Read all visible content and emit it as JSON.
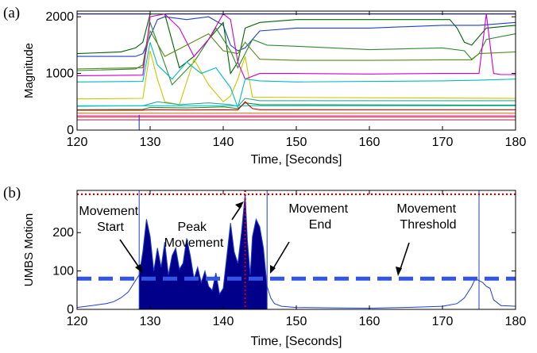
{
  "chart_data": [
    {
      "panel_label": "(a)",
      "type": "line",
      "xlabel": "Time, [Seconds]",
      "ylabel": "Magnitude",
      "xlim": [
        120,
        180
      ],
      "ylim": [
        0,
        2100
      ],
      "xticks": [
        120,
        130,
        140,
        150,
        160,
        170,
        180
      ],
      "yticks": [
        0,
        1000,
        2000
      ],
      "grid": false,
      "series": [
        {
          "color": "#000080",
          "x": [
            120,
            180
          ],
          "y": [
            2050,
            2050
          ]
        },
        {
          "color": "#1f3fcf",
          "x": [
            120,
            128,
            129,
            131,
            132,
            135,
            138,
            140,
            141,
            142,
            143,
            145,
            150,
            160,
            170,
            175,
            180
          ],
          "y": [
            1300,
            1300,
            1350,
            1950,
            2000,
            1950,
            2000,
            1850,
            1500,
            1400,
            1450,
            1750,
            1800,
            1800,
            1850,
            1850,
            1900
          ]
        },
        {
          "color": "#006400",
          "x": [
            120,
            126,
            128,
            129,
            130,
            132,
            134,
            136,
            138,
            140,
            141,
            142,
            143,
            145,
            150,
            160,
            170,
            171,
            172,
            173,
            174,
            175,
            176,
            180
          ],
          "y": [
            1350,
            1380,
            1450,
            1550,
            2050,
            2050,
            1100,
            1300,
            1600,
            1900,
            1000,
            1200,
            1800,
            1900,
            1950,
            1950,
            1950,
            1950,
            1800,
            1550,
            1500,
            1650,
            1800,
            1850
          ]
        },
        {
          "color": "#2e8b2e",
          "x": [
            120,
            128,
            129,
            130,
            133,
            136,
            139,
            141,
            142,
            144,
            146,
            150,
            160,
            170,
            173,
            174,
            175,
            176,
            180
          ],
          "y": [
            1050,
            1080,
            1150,
            1900,
            800,
            1200,
            1800,
            1400,
            1100,
            1600,
            1500,
            1480,
            1420,
            1450,
            1400,
            1250,
            1350,
            1600,
            1700
          ]
        },
        {
          "color": "#5a8a1a",
          "x": [
            120,
            129,
            130,
            132,
            135,
            138,
            140,
            142,
            143,
            145,
            150,
            160,
            170,
            174,
            175,
            180
          ],
          "y": [
            1080,
            1100,
            1750,
            1300,
            1500,
            1700,
            1400,
            1350,
            1550,
            1250,
            1230,
            1230,
            1240,
            1240,
            1350,
            1380
          ]
        },
        {
          "color": "#c8c800",
          "x": [
            120,
            129,
            130,
            131,
            132,
            134,
            136,
            138,
            140,
            141,
            142,
            143,
            144,
            180
          ],
          "y": [
            550,
            560,
            1400,
            900,
            500,
            450,
            1250,
            800,
            500,
            600,
            900,
            1300,
            580,
            560
          ]
        },
        {
          "color": "#cc00cc",
          "x": [
            120,
            129,
            130,
            132,
            134,
            136,
            138,
            140,
            141,
            142,
            143,
            145,
            150,
            160,
            170,
            175,
            176,
            177,
            178,
            179,
            180
          ],
          "y": [
            960,
            970,
            2000,
            2050,
            1800,
            1300,
            1600,
            2050,
            1950,
            1200,
            900,
            1000,
            1000,
            990,
            1000,
            1000,
            2050,
            1000,
            980,
            980,
            980
          ]
        },
        {
          "color": "#00bcbc",
          "x": [
            120,
            129,
            130,
            131,
            133,
            135,
            137,
            139,
            141,
            142,
            143,
            145,
            150,
            160,
            170,
            175,
            180
          ],
          "y": [
            850,
            860,
            1550,
            1150,
            900,
            1200,
            1000,
            1100,
            750,
            400,
            900,
            870,
            850,
            860,
            870,
            880,
            900
          ]
        },
        {
          "color": "#3aa0a0",
          "x": [
            120,
            129,
            131,
            134,
            138,
            141,
            142,
            143,
            145,
            180
          ],
          "y": [
            420,
            430,
            500,
            450,
            480,
            450,
            420,
            560,
            520,
            520
          ]
        },
        {
          "color": "#228b22",
          "x": [
            120,
            129,
            130,
            135,
            140,
            142,
            143,
            145,
            180
          ],
          "y": [
            360,
            365,
            400,
            390,
            410,
            380,
            480,
            450,
            440
          ]
        },
        {
          "color": "#00cccc",
          "x": [
            120,
            180
          ],
          "y": [
            430,
            430
          ]
        },
        {
          "color": "#d00000",
          "x": [
            120,
            129,
            130,
            135,
            140,
            142,
            143,
            144,
            145,
            180
          ],
          "y": [
            350,
            350,
            360,
            355,
            360,
            355,
            500,
            380,
            360,
            360
          ]
        },
        {
          "color": "#ff7f00",
          "x": [
            120,
            180
          ],
          "y": [
            300,
            300
          ]
        },
        {
          "color": "#ff00ff",
          "x": [
            120,
            180
          ],
          "y": [
            250,
            250
          ]
        },
        {
          "color": "#cc6600",
          "x": [
            120,
            180
          ],
          "y": [
            230,
            230
          ]
        },
        {
          "color": "#b03060",
          "x": [
            120,
            180
          ],
          "y": [
            180,
            180
          ]
        },
        {
          "color": "#1f3fcf",
          "x": [
            128.5,
            128.5
          ],
          "y": [
            0,
            270
          ]
        }
      ]
    },
    {
      "panel_label": "(b)",
      "type": "area",
      "xlabel": "Time, [Seconds]",
      "ylabel": "UMBS Motion",
      "xlim": [
        120,
        180
      ],
      "ylim": [
        0,
        310
      ],
      "xticks": [
        120,
        130,
        140,
        150,
        160,
        170,
        180
      ],
      "yticks": [
        0,
        100,
        200
      ],
      "grid": false,
      "fill_color": "#00008b",
      "line_color": "#1f3fcf",
      "motion": {
        "x": [
          120,
          122,
          124,
          125,
          126,
          127,
          127.5,
          128,
          128.5,
          129,
          129.5,
          130,
          130.5,
          131,
          131.5,
          132,
          132.5,
          133,
          133.5,
          134,
          134.5,
          135,
          135.5,
          136,
          136.5,
          137,
          137.5,
          138,
          138.5,
          139,
          139.5,
          140,
          140.5,
          141,
          141.5,
          142,
          142.5,
          143,
          143.3,
          143.7,
          144,
          144.5,
          145,
          145.5,
          146,
          146.5,
          147,
          148,
          150,
          155,
          160,
          165,
          170,
          172,
          173,
          174,
          174.5,
          175,
          175.5,
          176,
          176.5,
          177,
          178,
          180
        ],
        "y": [
          5,
          10,
          15,
          20,
          30,
          45,
          60,
          75,
          90,
          150,
          235,
          190,
          100,
          160,
          110,
          175,
          90,
          140,
          160,
          105,
          120,
          185,
          140,
          80,
          110,
          70,
          100,
          60,
          50,
          95,
          40,
          55,
          140,
          225,
          150,
          120,
          200,
          300,
          180,
          90,
          190,
          235,
          215,
          160,
          60,
          30,
          15,
          8,
          5,
          4,
          3,
          5,
          8,
          15,
          30,
          60,
          80,
          75,
          70,
          60,
          55,
          25,
          10,
          8
        ]
      },
      "threshold": 80,
      "peak_level": 300,
      "start_time": 128.5,
      "peak_time": 143,
      "end_time": 146,
      "other_marker_time": 175,
      "annotations": {
        "start": "Movement\nStart",
        "peak": "Peak\nMovement",
        "end": "Movement\nEnd",
        "threshold": "Movement\nThreshold"
      }
    }
  ]
}
